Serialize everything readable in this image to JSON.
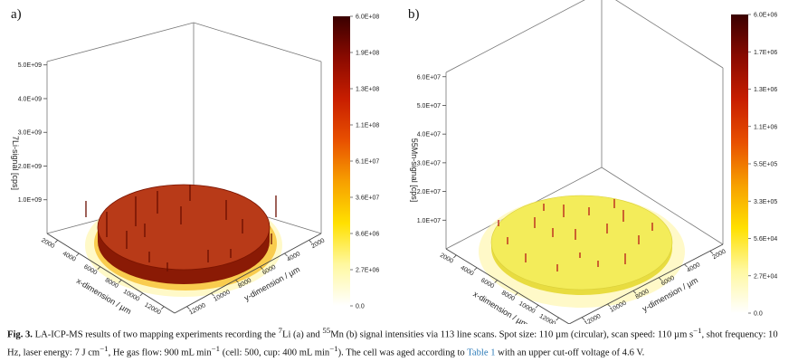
{
  "figure": {
    "panels": [
      {
        "label": "a)",
        "ylabel": "7Li-signal [cps]",
        "xlabel": "x-dimension / µm",
        "zlabel": "y-dimension / µm"
      },
      {
        "label": "b)",
        "ylabel": "55Mn-signal [cps]",
        "xlabel": "x-dimension / µm",
        "zlabel": "y-dimension / µm"
      }
    ]
  },
  "caption": {
    "fig_label": "Fig. 3.",
    "text_1": " LA-ICP-MS results of two mapping experiments recording the ",
    "sup_li": "7",
    "text_2": "Li (a) and ",
    "sup_mn": "55",
    "text_3": "Mn (b) signal intensities via 113 line scans. Spot size: 110 µm (circular), scan speed: 110 µm s",
    "sup_1": "−1",
    "text_4": ", shot frequency: 10 Hz, laser energy: 7 J cm",
    "sup_2": "−1",
    "text_5": ", He gas flow: 900 mL min",
    "sup_3": "−1",
    "text_6": " (cell: 500, cup: 400 mL min",
    "sup_4": "−1",
    "text_7": "). The cell was aged according to ",
    "table_link": "Table 1",
    "text_8": " with an upper cut-off voltage of 4.6 V."
  },
  "chart_data": [
    {
      "type": "surface",
      "title": "",
      "zlabel": "7Li-signal [cps]",
      "xlabel": "x-dimension / µm",
      "ylabel": "y-dimension / µm",
      "z_ticks": [
        "1.0E+09",
        "2.0E+09",
        "3.0E+09",
        "4.0E+09",
        "5.0E+09"
      ],
      "x_ticks": [
        "2000",
        "4000",
        "6000",
        "8000",
        "10000",
        "12000"
      ],
      "y_ticks": [
        "2000",
        "4000",
        "6000",
        "8000",
        "10000",
        "12000"
      ],
      "colorbar_ticks": [
        "0.0",
        "2.7E+06",
        "8.6E+06",
        "3.6E+07",
        "6.1E+07",
        "1.1E+08",
        "1.3E+08",
        "1.9E+08",
        "6.0E+08"
      ],
      "colormap": [
        "#ffffff",
        "#fff8a0",
        "#ffe000",
        "#f7a000",
        "#e85000",
        "#c81e00",
        "#8a0a00",
        "#3a0000"
      ],
      "surface_color": "#b83a18"
    },
    {
      "type": "surface",
      "title": "",
      "zlabel": "55Mn-signal [cps]",
      "xlabel": "x-dimension / µm",
      "ylabel": "y-dimension / µm",
      "z_ticks": [
        "1.0E+07",
        "2.0E+07",
        "3.0E+07",
        "4.0E+07",
        "5.0E+07",
        "6.0E+07"
      ],
      "x_ticks": [
        "2000",
        "4000",
        "6000",
        "8000",
        "10000",
        "12000"
      ],
      "y_ticks": [
        "2000",
        "4000",
        "6000",
        "8000",
        "10000",
        "12000"
      ],
      "colorbar_ticks": [
        "0.0",
        "2.7E+04",
        "5.6E+04",
        "3.3E+05",
        "5.5E+05",
        "1.1E+06",
        "1.3E+06",
        "1.7E+06",
        "6.0E+06"
      ],
      "colormap": [
        "#ffffff",
        "#fff8a0",
        "#ffe000",
        "#f7a000",
        "#e85000",
        "#c81e00",
        "#8a0a00",
        "#3a0000"
      ],
      "surface_color": "#f3ec5a"
    }
  ]
}
